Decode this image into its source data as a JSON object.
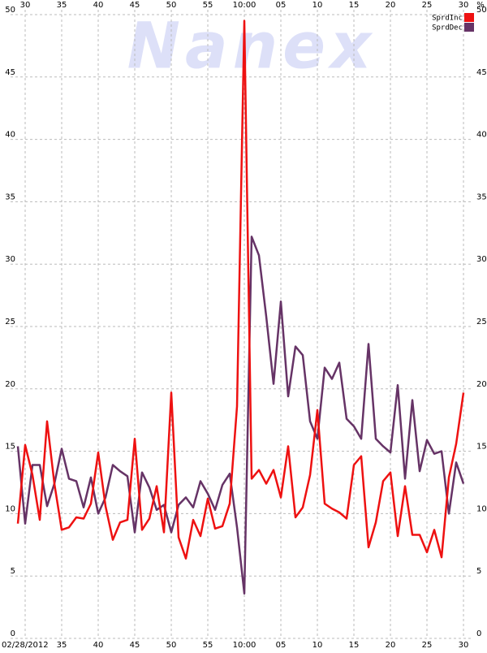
{
  "chart_data": {
    "type": "line",
    "watermark": "Nanex",
    "date": "02/28/2012",
    "y_unit": "%",
    "x": [
      569,
      570,
      571,
      572,
      573,
      574,
      575,
      576,
      577,
      578,
      579,
      580,
      581,
      582,
      583,
      584,
      585,
      586,
      587,
      588,
      589,
      590,
      591,
      592,
      593,
      594,
      595,
      596,
      597,
      598,
      599,
      600,
      601,
      602,
      603,
      604,
      605,
      606,
      607,
      608,
      609,
      610,
      611,
      612,
      613,
      614,
      615,
      616,
      617,
      618,
      619,
      620,
      621,
      622,
      623,
      624,
      625,
      626,
      627,
      628,
      629,
      630
    ],
    "series": [
      {
        "name": "SprdInc",
        "color": "#ee1111",
        "values": [
          9.2,
          15.5,
          13.1,
          9.5,
          17.4,
          12.4,
          8.7,
          8.9,
          9.7,
          9.6,
          10.8,
          14.9,
          10.6,
          7.9,
          9.3,
          9.5,
          16.0,
          8.7,
          9.6,
          12.2,
          8.5,
          19.7,
          8.1,
          6.4,
          9.5,
          8.2,
          11.2,
          8.8,
          9.0,
          10.8,
          18.6,
          49.5,
          12.8,
          13.5,
          12.4,
          13.5,
          11.3,
          15.4,
          9.7,
          10.5,
          13.1,
          18.3,
          10.8,
          10.4,
          10.1,
          9.6,
          13.9,
          14.6,
          7.3,
          9.3,
          12.6,
          13.3,
          8.2,
          12.2,
          8.3,
          8.3,
          6.9,
          8.7,
          6.5,
          12.9,
          15.6,
          19.7
        ]
      },
      {
        "name": "SprdDec",
        "color": "#663366",
        "values": [
          15.4,
          9.2,
          13.9,
          13.9,
          10.6,
          12.4,
          15.2,
          12.8,
          12.6,
          10.5,
          12.9,
          10.0,
          11.3,
          13.9,
          13.4,
          13.0,
          8.5,
          13.3,
          12.1,
          10.3,
          10.7,
          8.5,
          10.7,
          11.3,
          10.5,
          12.6,
          11.6,
          10.3,
          12.3,
          13.2,
          8.9,
          3.6,
          32.2,
          30.7,
          25.8,
          20.4,
          27.0,
          19.4,
          23.4,
          22.7,
          17.4,
          16.0,
          21.7,
          20.8,
          22.1,
          17.6,
          17.0,
          16.0,
          23.6,
          16.0,
          15.4,
          14.9,
          20.3,
          12.8,
          19.1,
          13.4,
          15.9,
          14.8,
          15.0,
          10.0,
          14.1,
          12.4
        ]
      }
    ],
    "xlim": [
      568,
      631.33
    ],
    "xticks": [
      {
        "value": 570,
        "label": "30"
      },
      {
        "value": 575,
        "label": "35"
      },
      {
        "value": 580,
        "label": "40"
      },
      {
        "value": 585,
        "label": "45"
      },
      {
        "value": 590,
        "label": "50"
      },
      {
        "value": 595,
        "label": "55"
      },
      {
        "value": 600,
        "label": "10:00"
      },
      {
        "value": 605,
        "label": "05"
      },
      {
        "value": 610,
        "label": "10"
      },
      {
        "value": 615,
        "label": "15"
      },
      {
        "value": 620,
        "label": "20"
      },
      {
        "value": 625,
        "label": "25"
      },
      {
        "value": 630,
        "label": "30"
      }
    ],
    "ylim": [
      0,
      50
    ],
    "yticks": [
      0,
      5,
      10,
      15,
      20,
      25,
      30,
      35,
      40,
      45,
      50
    ],
    "grid": true,
    "legend": "top-right"
  }
}
